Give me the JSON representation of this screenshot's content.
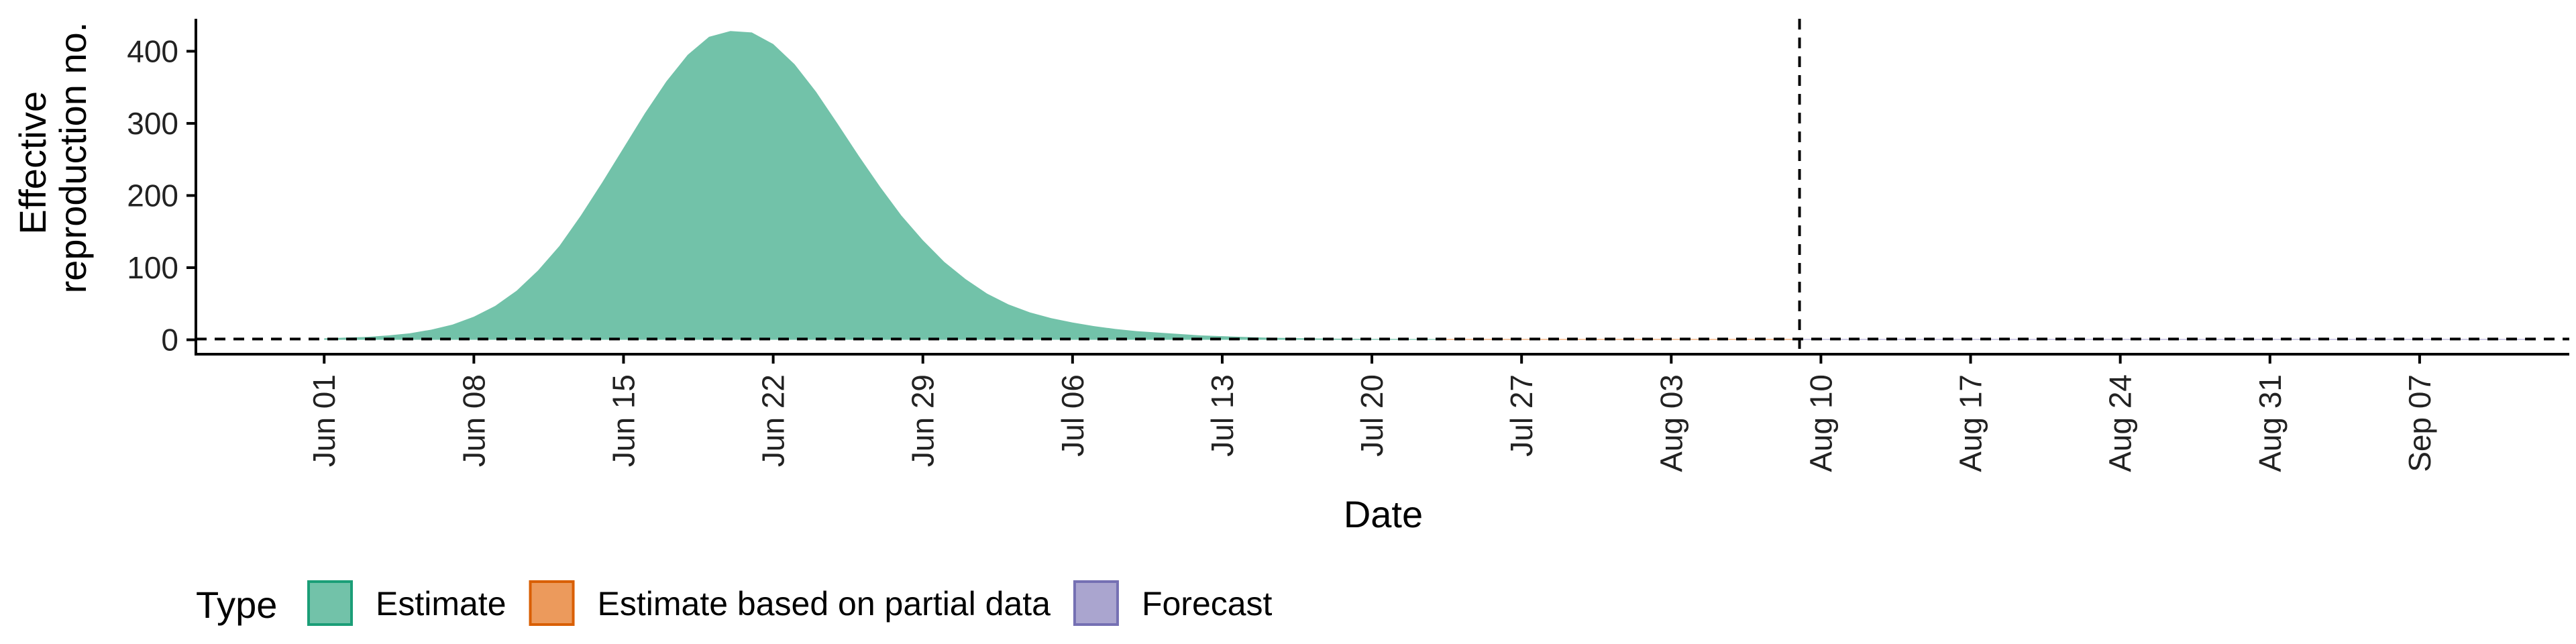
{
  "chart_data": {
    "type": "area",
    "xlabel": "Date",
    "ylabel_lines": [
      "Effective",
      "reproduction no."
    ],
    "y_ticks": [
      0,
      100,
      200,
      300,
      400
    ],
    "ylim": [
      -20,
      445
    ],
    "x_range": [
      "2020-05-26",
      "2020-09-14"
    ],
    "x_ticks": [
      {
        "date": "2020-06-01",
        "label": "Jun 01"
      },
      {
        "date": "2020-06-08",
        "label": "Jun 08"
      },
      {
        "date": "2020-06-15",
        "label": "Jun 15"
      },
      {
        "date": "2020-06-22",
        "label": "Jun 22"
      },
      {
        "date": "2020-06-29",
        "label": "Jun 29"
      },
      {
        "date": "2020-07-06",
        "label": "Jul 06"
      },
      {
        "date": "2020-07-13",
        "label": "Jul 13"
      },
      {
        "date": "2020-07-20",
        "label": "Jul 20"
      },
      {
        "date": "2020-07-27",
        "label": "Jul 27"
      },
      {
        "date": "2020-08-03",
        "label": "Aug 03"
      },
      {
        "date": "2020-08-10",
        "label": "Aug 10"
      },
      {
        "date": "2020-08-17",
        "label": "Aug 17"
      },
      {
        "date": "2020-08-24",
        "label": "Aug 24"
      },
      {
        "date": "2020-08-31",
        "label": "Aug 31"
      },
      {
        "date": "2020-09-07",
        "label": "Sep 07"
      }
    ],
    "hline_y": 1,
    "vline_date": "2020-08-09",
    "grid": false,
    "legend": {
      "position": "bottom-left",
      "title": "Type",
      "entries": [
        {
          "label": "Estimate",
          "fill": "#72c2a9",
          "stroke": "#1b9e77"
        },
        {
          "label": "Estimate based on partial data",
          "fill": "#ec9a5c",
          "stroke": "#d95f02"
        },
        {
          "label": "Forecast",
          "fill": "#aaa5cf",
          "stroke": "#7570b3"
        }
      ]
    },
    "series": [
      {
        "name": "Estimate",
        "color": "#72c2a9",
        "points": [
          [
            "2020-06-01",
            2
          ],
          [
            "2020-06-02",
            3
          ],
          [
            "2020-06-03",
            4
          ],
          [
            "2020-06-04",
            6
          ],
          [
            "2020-06-05",
            9
          ],
          [
            "2020-06-06",
            14
          ],
          [
            "2020-06-07",
            21
          ],
          [
            "2020-06-08",
            32
          ],
          [
            "2020-06-09",
            47
          ],
          [
            "2020-06-10",
            68
          ],
          [
            "2020-06-11",
            96
          ],
          [
            "2020-06-12",
            130
          ],
          [
            "2020-06-13",
            172
          ],
          [
            "2020-06-14",
            218
          ],
          [
            "2020-06-15",
            266
          ],
          [
            "2020-06-16",
            314
          ],
          [
            "2020-06-17",
            358
          ],
          [
            "2020-06-18",
            395
          ],
          [
            "2020-06-19",
            420
          ],
          [
            "2020-06-20",
            428
          ],
          [
            "2020-06-21",
            426
          ],
          [
            "2020-06-22",
            410
          ],
          [
            "2020-06-23",
            382
          ],
          [
            "2020-06-24",
            344
          ],
          [
            "2020-06-25",
            300
          ],
          [
            "2020-06-26",
            255
          ],
          [
            "2020-06-27",
            212
          ],
          [
            "2020-06-28",
            172
          ],
          [
            "2020-06-29",
            138
          ],
          [
            "2020-06-30",
            108
          ],
          [
            "2020-07-01",
            84
          ],
          [
            "2020-07-02",
            64
          ],
          [
            "2020-07-03",
            49
          ],
          [
            "2020-07-04",
            38
          ],
          [
            "2020-07-05",
            30
          ],
          [
            "2020-07-06",
            24
          ],
          [
            "2020-07-07",
            19
          ],
          [
            "2020-07-08",
            15
          ],
          [
            "2020-07-09",
            12
          ],
          [
            "2020-07-10",
            10
          ],
          [
            "2020-07-11",
            8
          ],
          [
            "2020-07-12",
            6
          ],
          [
            "2020-07-13",
            5
          ],
          [
            "2020-07-14",
            4
          ],
          [
            "2020-07-15",
            3
          ],
          [
            "2020-07-16",
            2.5
          ],
          [
            "2020-07-17",
            2
          ],
          [
            "2020-07-18",
            1.6
          ],
          [
            "2020-07-19",
            1.4
          ],
          [
            "2020-07-20",
            1.2
          ],
          [
            "2020-07-21",
            1.1
          ],
          [
            "2020-07-22",
            1
          ],
          [
            "2020-07-23",
            1
          ]
        ]
      },
      {
        "name": "Estimate based on partial data",
        "color": "#ec9a5c",
        "points": [
          [
            "2020-07-23",
            1
          ],
          [
            "2020-07-27",
            1
          ],
          [
            "2020-08-01",
            1
          ],
          [
            "2020-08-05",
            1
          ],
          [
            "2020-08-09",
            1
          ]
        ]
      },
      {
        "name": "Forecast",
        "color": "#aaa5cf",
        "points": [
          [
            "2020-08-09",
            1
          ],
          [
            "2020-08-20",
            1
          ],
          [
            "2020-09-01",
            1
          ],
          [
            "2020-09-12",
            1
          ]
        ]
      }
    ]
  }
}
